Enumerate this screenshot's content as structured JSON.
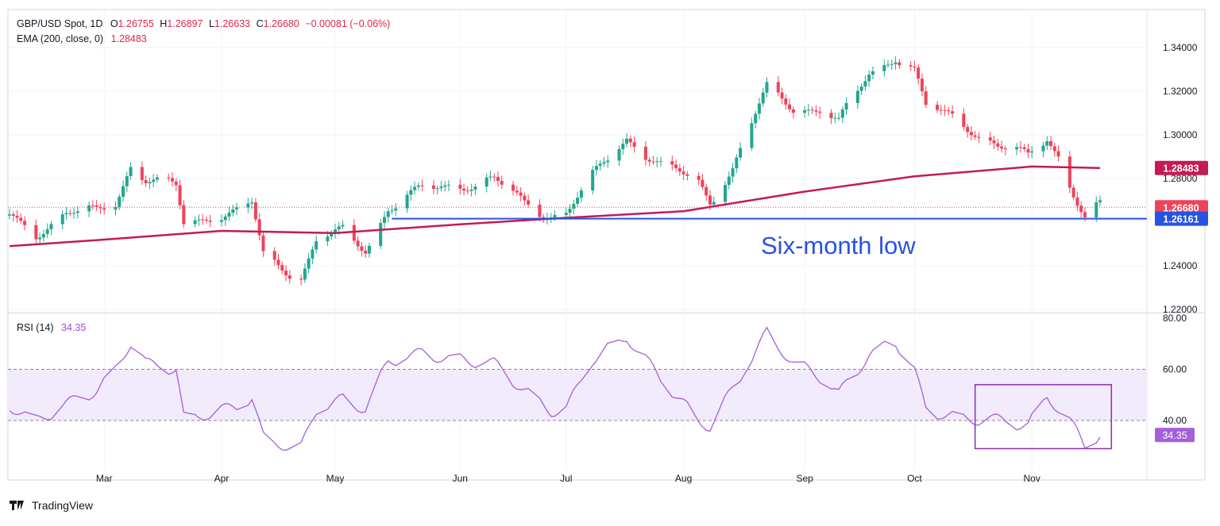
{
  "header": {
    "symbol": "GBP/USD Spot, 1D",
    "ohlc": [
      {
        "label": "O",
        "value": "1.26755"
      },
      {
        "label": "H",
        "value": "1.26897"
      },
      {
        "label": "L",
        "value": "1.26633"
      },
      {
        "label": "C",
        "value": "1.26680"
      }
    ],
    "change": "−0.00081 (−0.06%)",
    "ema_label": "EMA (200, close, 0)",
    "ema_value": "1.28483"
  },
  "rsi_header": {
    "label": "RSI (14)",
    "value": "34.35"
  },
  "annotation": "Six-month low",
  "brand": "TradingView",
  "colors": {
    "up": "#22a68f",
    "down": "#f0425a",
    "ema": "#c41a55",
    "support": "#2851e5",
    "rsi": "#a45fdc",
    "rsi_box": "#8e2fb3",
    "price_tag": "#f0425a"
  },
  "chart_data": [
    {
      "type": "candlestick",
      "title": "GBP/USD Spot, 1D",
      "x_tick_labels": [
        "Mar",
        "Apr",
        "May",
        "Jun",
        "Jul",
        "Aug",
        "Sep",
        "Oct",
        "Nov"
      ],
      "x_tick_dates": [
        "2024-03-01",
        "2024-04-01",
        "2024-05-01",
        "2024-06-03",
        "2024-07-01",
        "2024-08-01",
        "2024-09-02",
        "2024-10-01",
        "2024-11-01"
      ],
      "y_ticks": [
        "1.34000",
        "1.32000",
        "1.30000",
        "1.28000",
        "1.24000",
        "1.22000"
      ],
      "ylim": [
        1.22,
        1.35
      ],
      "price_labels": [
        {
          "value": "1.28483",
          "role": "EMA (200)"
        },
        {
          "value": "1.26680",
          "role": "last close"
        },
        {
          "value": "1.26161",
          "role": "six-month low"
        }
      ],
      "support_level": 1.26161,
      "support_start": "2024-05-16",
      "ema200": [
        [
          "2024-02-05",
          1.249
        ],
        [
          "2024-03-01",
          1.252
        ],
        [
          "2024-04-01",
          1.256
        ],
        [
          "2024-05-01",
          1.255
        ],
        [
          "2024-06-03",
          1.259
        ],
        [
          "2024-07-01",
          1.262
        ],
        [
          "2024-08-01",
          1.265
        ],
        [
          "2024-09-02",
          1.274
        ],
        [
          "2024-10-01",
          1.281
        ],
        [
          "2024-11-01",
          1.2855
        ],
        [
          "2024-11-19",
          1.2848
        ]
      ],
      "grid": true,
      "ohlc_keypoints": [
        [
          "2024-02-05",
          1.263
        ],
        [
          "2024-02-12",
          1.256
        ],
        [
          "2024-02-20",
          1.263
        ],
        [
          "2024-02-28",
          1.265
        ],
        [
          "2024-03-04",
          1.27
        ],
        [
          "2024-03-08",
          1.286
        ],
        [
          "2024-03-12",
          1.279
        ],
        [
          "2024-03-20",
          1.276
        ],
        [
          "2024-03-22",
          1.26
        ],
        [
          "2024-03-29",
          1.263
        ],
        [
          "2024-04-05",
          1.264
        ],
        [
          "2024-04-09",
          1.268
        ],
        [
          "2024-04-12",
          1.245
        ],
        [
          "2024-04-22",
          1.235
        ],
        [
          "2024-04-26",
          1.251
        ],
        [
          "2024-05-03",
          1.255
        ],
        [
          "2024-05-09",
          1.248
        ],
        [
          "2024-05-15",
          1.267
        ],
        [
          "2024-05-24",
          1.274
        ],
        [
          "2024-06-03",
          1.278
        ],
        [
          "2024-06-12",
          1.279
        ],
        [
          "2024-06-20",
          1.268
        ],
        [
          "2024-06-27",
          1.264
        ],
        [
          "2024-07-01",
          1.265
        ],
        [
          "2024-07-08",
          1.28
        ],
        [
          "2024-07-17",
          1.299
        ],
        [
          "2024-07-26",
          1.286
        ],
        [
          "2024-08-05",
          1.278
        ],
        [
          "2024-08-08",
          1.27
        ],
        [
          "2024-08-14",
          1.285
        ],
        [
          "2024-08-23",
          1.321
        ],
        [
          "2024-08-30",
          1.313
        ],
        [
          "2024-09-06",
          1.312
        ],
        [
          "2024-09-11",
          1.305
        ],
        [
          "2024-09-19",
          1.328
        ],
        [
          "2024-09-26",
          1.337
        ],
        [
          "2024-10-01",
          1.329
        ],
        [
          "2024-10-04",
          1.312
        ],
        [
          "2024-10-14",
          1.306
        ],
        [
          "2024-10-23",
          1.295
        ],
        [
          "2024-10-31",
          1.289
        ],
        [
          "2024-11-05",
          1.299
        ],
        [
          "2024-11-08",
          1.291
        ],
        [
          "2024-11-13",
          1.27
        ],
        [
          "2024-11-15",
          1.262
        ],
        [
          "2024-11-19",
          1.2668
        ]
      ]
    },
    {
      "type": "line",
      "title": "RSI (14)",
      "ylim": [
        20,
        80
      ],
      "y_ticks": [
        "80.00",
        "60.00",
        "40.00"
      ],
      "value_label": "34.35",
      "bands": [
        40,
        60
      ],
      "rsi_keypoints": [
        [
          "2024-02-05",
          46
        ],
        [
          "2024-02-12",
          40
        ],
        [
          "2024-02-20",
          46
        ],
        [
          "2024-02-28",
          52
        ],
        [
          "2024-03-04",
          60
        ],
        [
          "2024-03-08",
          71
        ],
        [
          "2024-03-12",
          62
        ],
        [
          "2024-03-20",
          60
        ],
        [
          "2024-03-22",
          41
        ],
        [
          "2024-03-29",
          43
        ],
        [
          "2024-04-05",
          45
        ],
        [
          "2024-04-09",
          49
        ],
        [
          "2024-04-12",
          33
        ],
        [
          "2024-04-22",
          29
        ],
        [
          "2024-04-26",
          44
        ],
        [
          "2024-05-03",
          48
        ],
        [
          "2024-05-09",
          45
        ],
        [
          "2024-05-15",
          63
        ],
        [
          "2024-05-24",
          66
        ],
        [
          "2024-06-03",
          64
        ],
        [
          "2024-06-12",
          62
        ],
        [
          "2024-06-20",
          52
        ],
        [
          "2024-06-27",
          44
        ],
        [
          "2024-07-01",
          44
        ],
        [
          "2024-07-08",
          64
        ],
        [
          "2024-07-17",
          73
        ],
        [
          "2024-07-26",
          56
        ],
        [
          "2024-08-05",
          40
        ],
        [
          "2024-08-08",
          38
        ],
        [
          "2024-08-14",
          52
        ],
        [
          "2024-08-23",
          74
        ],
        [
          "2024-08-30",
          63
        ],
        [
          "2024-09-06",
          57
        ],
        [
          "2024-09-11",
          50
        ],
        [
          "2024-09-19",
          66
        ],
        [
          "2024-09-26",
          71
        ],
        [
          "2024-10-01",
          59
        ],
        [
          "2024-10-04",
          44
        ],
        [
          "2024-10-14",
          41
        ],
        [
          "2024-10-23",
          40
        ],
        [
          "2024-10-31",
          38
        ],
        [
          "2024-11-05",
          50
        ],
        [
          "2024-11-08",
          45
        ],
        [
          "2024-11-13",
          35
        ],
        [
          "2024-11-15",
          30
        ],
        [
          "2024-11-19",
          34.35
        ]
      ],
      "highlight_box": {
        "start": "2024-10-17",
        "end": "2024-11-22",
        "low": 29,
        "high": 54
      }
    }
  ]
}
